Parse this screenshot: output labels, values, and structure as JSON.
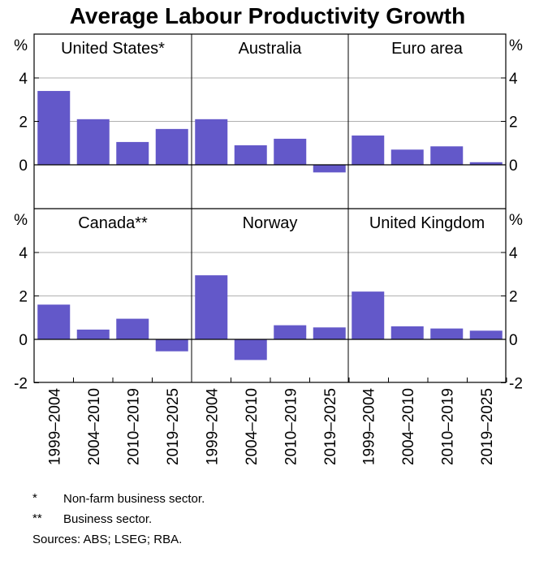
{
  "chart_data": {
    "type": "bar",
    "title": "Average Labour Productivity Growth",
    "unit": "%",
    "categories": [
      "1999–2004",
      "2004–2010",
      "2010–2019",
      "2019–2025"
    ],
    "ylim": [
      -2,
      6
    ],
    "yticks": [
      4,
      2,
      0,
      -2
    ],
    "bar_color": "#6358c9",
    "grid_color": "#b0b0b0",
    "panels": [
      {
        "name": "United States*",
        "values": [
          3.4,
          2.1,
          1.05,
          1.65
        ]
      },
      {
        "name": "Australia",
        "values": [
          2.1,
          0.9,
          1.2,
          -0.35
        ]
      },
      {
        "name": "Euro area",
        "values": [
          1.35,
          0.7,
          0.85,
          0.12
        ]
      },
      {
        "name": "Canada**",
        "values": [
          1.6,
          0.45,
          0.95,
          -0.55
        ]
      },
      {
        "name": "Norway",
        "values": [
          2.95,
          -0.95,
          0.65,
          0.55
        ]
      },
      {
        "name": "United Kingdom",
        "values": [
          2.2,
          0.6,
          0.5,
          0.4
        ]
      }
    ]
  },
  "footnotes": [
    {
      "marker": "*",
      "text": "Non-farm business sector."
    },
    {
      "marker": "**",
      "text": "Business sector."
    }
  ],
  "sources": "Sources: ABS; LSEG; RBA."
}
